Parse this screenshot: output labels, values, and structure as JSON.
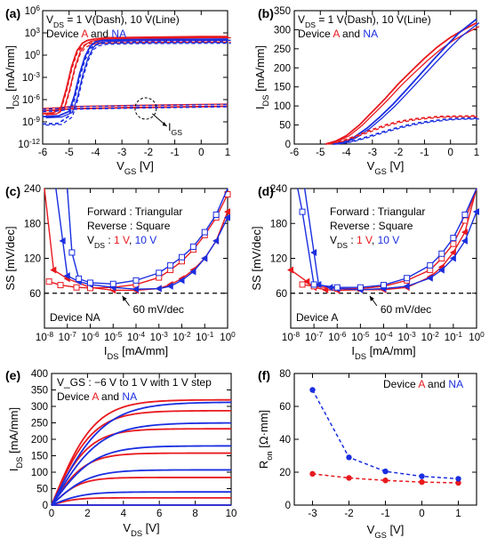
{
  "colors": {
    "red": "#e8191e",
    "blue": "#1a2ee0",
    "black": "#000000"
  },
  "chart_data": [
    {
      "id": "a",
      "type": "line",
      "panel_label": "(a)",
      "xlabel": "V_GS [V]",
      "ylabel": "I_DS [mA/mm]",
      "yscale": "log",
      "xlim": [
        -6,
        1
      ],
      "ylim_exp": [
        -12,
        6
      ],
      "xticks": [
        -6,
        -5,
        -4,
        -3,
        -2,
        -1,
        0,
        1
      ],
      "yticks_exp": [
        -12,
        -9,
        -6,
        -3,
        0,
        3,
        6
      ],
      "annotations": {
        "line1": "V_DS = 1 V(Dash), 10 V(Line)",
        "line2_prefix": "Device ",
        "line2_a": "A",
        "line2_mid": " and ",
        "line2_na": "NA",
        "igs": "I_GS"
      },
      "series": [
        {
          "name": "Device A, V_DS = 10 V",
          "color": "red",
          "style": "solid",
          "x": [
            -6,
            -5.6,
            -5.3,
            -5.1,
            -4.9,
            -4.7,
            -4.5,
            -4.3,
            -4.0,
            -3.5,
            -2.5,
            -1,
            0,
            1
          ],
          "y_exp": [
            -7.9,
            -7.8,
            -7.0,
            -4.5,
            -1.5,
            0.6,
            1.6,
            2.0,
            2.2,
            2.35,
            2.4,
            2.45,
            2.5,
            2.5
          ]
        },
        {
          "name": "Device A, V_DS = 1 V",
          "color": "red",
          "style": "dash",
          "x": [
            -6,
            -5.6,
            -5.3,
            -5.1,
            -4.9,
            -4.7,
            -4.5,
            -4.3,
            -4.0,
            -3.5,
            -2.5,
            -1,
            0,
            1
          ],
          "y_exp": [
            -7.9,
            -7.8,
            -7.2,
            -4.8,
            -1.8,
            0.3,
            1.2,
            1.55,
            1.7,
            1.8,
            1.85,
            1.88,
            1.9,
            1.9
          ]
        },
        {
          "name": "Device NA, V_DS = 10 V",
          "color": "blue",
          "style": "solid",
          "x": [
            -6,
            -5.4,
            -5.0,
            -4.8,
            -4.6,
            -4.4,
            -4.2,
            -4.0,
            -3.7,
            -3.2,
            -2.5,
            -1,
            0,
            1
          ],
          "y_exp": [
            -8.3,
            -8.2,
            -7.6,
            -5.5,
            -2.5,
            -0.2,
            1.2,
            1.8,
            2.0,
            2.05,
            2.1,
            2.12,
            2.14,
            2.15
          ]
        },
        {
          "name": "Device NA, V_DS = 1 V",
          "color": "blue",
          "style": "dash",
          "x": [
            -6,
            -5.4,
            -5.0,
            -4.8,
            -4.6,
            -4.4,
            -4.2,
            -4.0,
            -3.7,
            -3.2,
            -2.5,
            -1,
            0,
            1
          ],
          "y_exp": [
            -9.3,
            -9.2,
            -8.2,
            -6.0,
            -3.0,
            -0.6,
            0.9,
            1.4,
            1.6,
            1.65,
            1.7,
            1.72,
            1.74,
            1.75
          ]
        },
        {
          "name": "I_GS",
          "color": "red",
          "style": "solid",
          "x": [
            -6,
            -5.4,
            -5.0,
            -4.5,
            -3,
            -1,
            1
          ],
          "y_exp": [
            -7.5,
            -7.4,
            -7.25,
            -7.2,
            -7.1,
            -7.0,
            -6.9
          ]
        },
        {
          "name": "I_GS NA",
          "color": "blue",
          "style": "dash",
          "x": [
            -6,
            -5.4,
            -5.0,
            -4.5,
            -3,
            -1,
            1
          ],
          "y_exp": [
            -7.6,
            -7.5,
            -7.3,
            -7.25,
            -7.15,
            -7.05,
            -6.95
          ]
        }
      ]
    },
    {
      "id": "b",
      "type": "line",
      "panel_label": "(b)",
      "xlabel": "V_GS [V]",
      "ylabel": "I_DS [mA/mm]",
      "xlim": [
        -6,
        1
      ],
      "ylim": [
        0,
        350
      ],
      "xticks": [
        -6,
        -5,
        -4,
        -3,
        -2,
        -1,
        0,
        1
      ],
      "yticks": [
        0,
        50,
        100,
        150,
        200,
        250,
        300,
        350
      ],
      "annotations": {
        "line1": "V_DS = 1 V(Dash), 10 V(Line)",
        "line2_prefix": "Device ",
        "line2_a": "A",
        "line2_mid": " and ",
        "line2_na": "NA"
      },
      "series": [
        {
          "name": "Device A, V_DS = 10 V",
          "color": "red",
          "style": "solid",
          "x": [
            -4.8,
            -4.4,
            -4,
            -3.5,
            -3,
            -2.5,
            -2,
            -1.5,
            -1,
            -0.5,
            0,
            0.5,
            1
          ],
          "y": [
            0,
            8,
            22,
            50,
            85,
            120,
            158,
            192,
            225,
            255,
            280,
            300,
            318
          ]
        },
        {
          "name": "Device NA, V_DS = 10 V",
          "color": "blue",
          "style": "solid",
          "x": [
            -4.5,
            -4.1,
            -3.7,
            -3.2,
            -2.7,
            -2.2,
            -1.7,
            -1.2,
            -0.7,
            -0.2,
            0.3,
            0.7,
            1
          ],
          "y": [
            0,
            5,
            18,
            42,
            72,
            105,
            142,
            180,
            218,
            255,
            290,
            312,
            328
          ]
        },
        {
          "name": "Device A, V_DS = 1 V",
          "color": "red",
          "style": "dash",
          "x": [
            -4.8,
            -4.4,
            -4,
            -3.5,
            -3,
            -2.5,
            -2,
            -1.5,
            -1,
            -0.5,
            0,
            1
          ],
          "y": [
            0,
            4,
            12,
            25,
            38,
            50,
            59,
            65,
            69,
            72,
            73,
            74
          ]
        },
        {
          "name": "Device NA, V_DS = 1 V",
          "color": "blue",
          "style": "dash",
          "x": [
            -4.5,
            -4.1,
            -3.7,
            -3.2,
            -2.7,
            -2.2,
            -1.7,
            -1.2,
            -0.7,
            -0.2,
            0.3,
            1
          ],
          "y": [
            0,
            3,
            9,
            19,
            30,
            40,
            49,
            56,
            61,
            65,
            67,
            68
          ]
        }
      ]
    },
    {
      "id": "c",
      "type": "scatter",
      "panel_label": "(c)",
      "xlabel": "I_DS [mA/mm]",
      "ylabel": "SS [mV/dec]",
      "xscale": "log",
      "xlim_exp": [
        -8,
        0
      ],
      "ylim": [
        0,
        240
      ],
      "xticks_exp": [
        -8,
        -7,
        -6,
        -5,
        -4,
        -3,
        -2,
        -1,
        0
      ],
      "yticks": [
        60,
        120,
        180,
        240
      ],
      "annotations": {
        "line1": "Forward : Triangular",
        "line2": "Reverse : Square",
        "vds_prefix": "V_DS : ",
        "vds_1": "1 V",
        "vds_sep": ", ",
        "vds_10": "10 V",
        "device": "Device NA",
        "ref": "60 mV/dec"
      },
      "reference_line": 60,
      "series": [
        {
          "name": "1 V Forward",
          "color": "red",
          "marker": "triangle",
          "x_exp": [
            -8,
            -7.6,
            -7,
            -6,
            -5,
            -4,
            -3,
            -2.5,
            -2,
            -1.5,
            -1,
            -0.5,
            0
          ],
          "y": [
            240,
            100,
            85,
            70,
            65,
            65,
            68,
            75,
            85,
            100,
            120,
            150,
            200
          ]
        },
        {
          "name": "1 V Reverse",
          "color": "red",
          "marker": "square",
          "x_exp": [
            -7.8,
            -7.3,
            -6.6,
            -6,
            -5,
            -4,
            -3,
            -2.5,
            -2,
            -1.5,
            -1,
            -0.5,
            0
          ],
          "y": [
            80,
            74,
            70,
            69,
            70,
            75,
            87,
            100,
            115,
            135,
            160,
            190,
            230
          ]
        },
        {
          "name": "10 V Forward",
          "color": "blue",
          "marker": "triangle",
          "x_exp": [
            -7.5,
            -7.2,
            -7,
            -6.5,
            -6,
            -5,
            -4,
            -3,
            -2.5,
            -2,
            -1.5,
            -1,
            -0.5,
            0
          ],
          "y": [
            240,
            150,
            90,
            80,
            75,
            70,
            67,
            68,
            72,
            82,
            97,
            120,
            150,
            190
          ]
        },
        {
          "name": "10 V Reverse",
          "color": "blue",
          "marker": "square",
          "x_exp": [
            -7,
            -6.8,
            -6.5,
            -6,
            -5,
            -4,
            -3,
            -2.5,
            -2,
            -1.5,
            -1,
            -0.5,
            0
          ],
          "y": [
            240,
            130,
            85,
            78,
            76,
            82,
            95,
            108,
            122,
            140,
            165,
            195,
            240
          ]
        }
      ]
    },
    {
      "id": "d",
      "type": "scatter",
      "panel_label": "(d)",
      "xlabel": "I_DS [mA/mm]",
      "ylabel": "SS [mV/dec]",
      "xscale": "log",
      "xlim_exp": [
        -8,
        0
      ],
      "ylim": [
        0,
        240
      ],
      "xticks_exp": [
        -8,
        -7,
        -6,
        -5,
        -4,
        -3,
        -2,
        -1,
        0
      ],
      "yticks": [
        60,
        120,
        180,
        240
      ],
      "annotations": {
        "line1": "Forward : Triangular",
        "line2": "Reverse : Square",
        "vds_prefix": "V_DS : ",
        "vds_1": "1 V",
        "vds_sep": ", ",
        "vds_10": "10 V",
        "device": "Device A",
        "ref": "60 mV/dec"
      },
      "reference_line": 60,
      "series": [
        {
          "name": "1 V Forward",
          "color": "red",
          "marker": "triangle",
          "x_exp": [
            -8,
            -7.3,
            -7,
            -6.5,
            -6,
            -5,
            -4,
            -3,
            -2,
            -1.5,
            -1,
            -0.5,
            0
          ],
          "y": [
            100,
            80,
            70,
            66,
            65,
            66,
            66,
            70,
            88,
            105,
            130,
            165,
            240
          ]
        },
        {
          "name": "1 V Reverse",
          "color": "red",
          "marker": "square",
          "x_exp": [
            -7.5,
            -7,
            -6,
            -5,
            -4,
            -3,
            -2,
            -1.5,
            -1,
            -0.5,
            0
          ],
          "y": [
            75,
            72,
            68,
            68,
            72,
            82,
            100,
            120,
            145,
            185,
            240
          ]
        },
        {
          "name": "10 V Forward",
          "color": "blue",
          "marker": "triangle",
          "x_exp": [
            -7.4,
            -7,
            -6.8,
            -6.3,
            -6,
            -5,
            -4,
            -3,
            -2,
            -1.5,
            -1,
            -0.5,
            0
          ],
          "y": [
            240,
            130,
            75,
            70,
            68,
            66,
            68,
            72,
            86,
            100,
            120,
            150,
            200
          ]
        },
        {
          "name": "10 V Reverse",
          "color": "blue",
          "marker": "square",
          "x_exp": [
            -7.7,
            -7.5,
            -7,
            -6,
            -5,
            -4,
            -3,
            -2,
            -1.5,
            -1,
            -0.5,
            0
          ],
          "y": [
            240,
            200,
            75,
            70,
            70,
            74,
            86,
            108,
            128,
            155,
            195,
            240
          ]
        }
      ]
    },
    {
      "id": "e",
      "type": "line",
      "panel_label": "(e)",
      "xlabel": "V_DS [V]",
      "ylabel": "I_DS [mA/mm]",
      "xlim": [
        0,
        10
      ],
      "ylim": [
        0,
        400
      ],
      "xticks": [
        0,
        2,
        4,
        6,
        8,
        10
      ],
      "yticks": [
        0,
        50,
        100,
        150,
        200,
        250,
        300,
        350,
        400
      ],
      "annotations": {
        "line1": "V_GS : −6 V to 1 V with 1 V step",
        "line2_prefix": "Device ",
        "line2_a": "A",
        "line2_mid": " and ",
        "line2_na": "NA"
      },
      "curve_model": "I = Isat * tanh(V / Vk)",
      "series": [
        {
          "name": "Device A",
          "color": "red",
          "isat": [
            320,
            287,
            232,
            158,
            84,
            22,
            0
          ],
          "vk": [
            2.4,
            2.3,
            2.1,
            1.9,
            1.6,
            1.3,
            1.0
          ]
        },
        {
          "name": "Device NA",
          "color": "blue",
          "isat": [
            313,
            250,
            180,
            107,
            40,
            0
          ],
          "vk": [
            2.9,
            2.7,
            2.4,
            2.1,
            1.8,
            1.0
          ]
        }
      ]
    },
    {
      "id": "f",
      "type": "scatter",
      "panel_label": "(f)",
      "xlabel": "V_GS [V]",
      "ylabel": "R_on [Ω·mm]",
      "xlim": [
        -3.5,
        1.5
      ],
      "ylim": [
        0,
        80
      ],
      "xticks": [
        -3,
        -2,
        -1,
        0,
        1
      ],
      "yticks": [
        0,
        20,
        40,
        60,
        80
      ],
      "annotations": {
        "line1_prefix": "Device ",
        "line1_a": "A",
        "line1_mid": " and ",
        "line1_na": "NA"
      },
      "x": [
        -3,
        -2,
        -1,
        0,
        1
      ],
      "series": [
        {
          "name": "Device A",
          "color": "red",
          "values": [
            19.0,
            16.5,
            15.0,
            14.0,
            13.5
          ]
        },
        {
          "name": "Device NA",
          "color": "blue",
          "values": [
            70.0,
            29.0,
            20.5,
            17.5,
            16.0
          ]
        }
      ]
    }
  ]
}
